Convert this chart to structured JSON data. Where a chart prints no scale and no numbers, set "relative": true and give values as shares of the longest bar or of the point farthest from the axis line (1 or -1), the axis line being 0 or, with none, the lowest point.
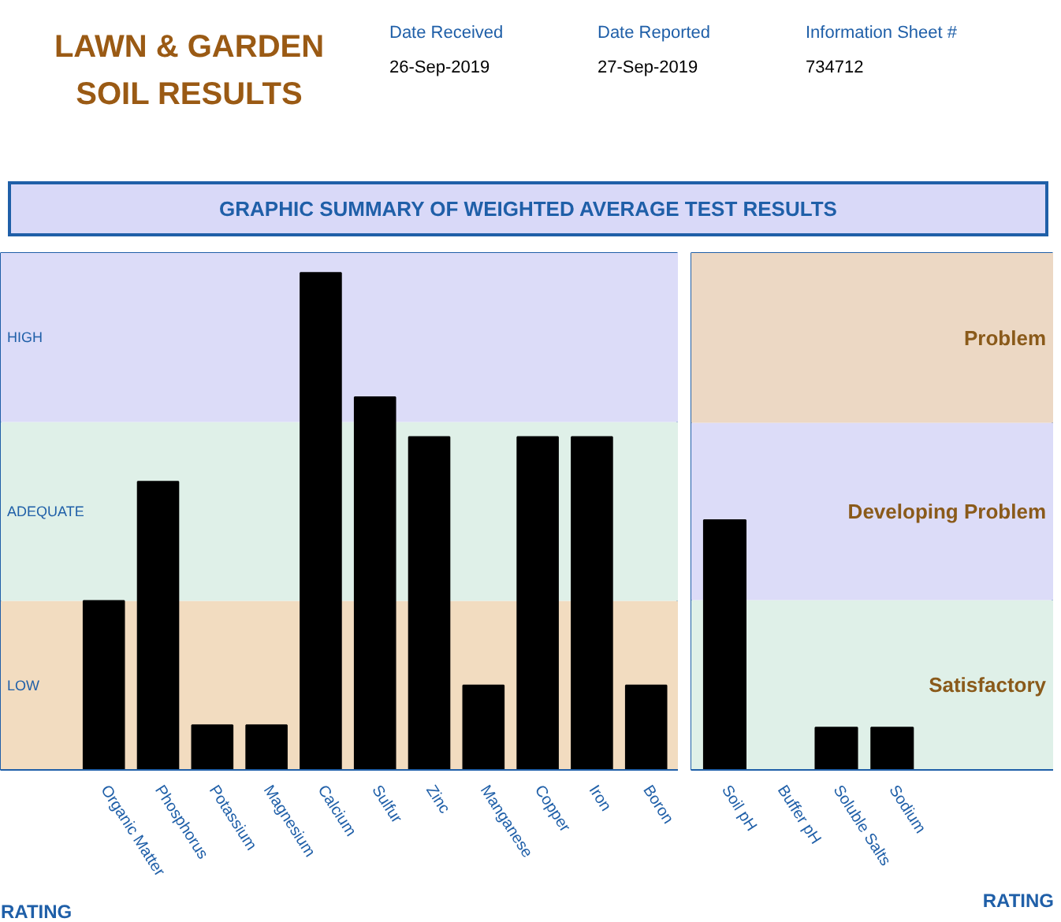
{
  "chart_data": [
    {
      "type": "bar",
      "title": "LAWN & GARDEN SOIL RESULTS",
      "subtitle": "GRAPHIC SUMMARY OF WEIGHTED AVERAGE TEST RESULTS",
      "annotations": [
        "Date Received",
        "26-Sep-2019",
        "Date Reported",
        "27-Sep-2019",
        "Information Sheet #",
        "734712"
      ],
      "xlabel": "RATING",
      "relative": true,
      "categories": [
        "Organic Matter",
        "Phosphorus",
        "Potassium",
        "Magnesium",
        "Calcium",
        "Sulfur",
        "Zinc",
        "Manganese",
        "Copper",
        "Iron",
        "Boron"
      ],
      "values": [
        0.34,
        0.58,
        0.09,
        0.09,
        1,
        0.75,
        0.67,
        0.17,
        0.67,
        0.67,
        0.17
      ],
      "color": "#000000",
      "bands": [
        {
          "axis": "y",
          "from": 0,
          "to": 0.34,
          "label": "LOW",
          "color": "#f2dcc0"
        },
        {
          "axis": "y",
          "from": 0.34,
          "to": 0.7,
          "label": "ADEQUATE",
          "color": "#dff0e8"
        },
        {
          "axis": "y",
          "from": 0.7,
          "to": 1.04,
          "label": "HIGH",
          "color": "#dcdcf8"
        }
      ]
    },
    {
      "type": "bar",
      "xlabel": "RATING",
      "relative": true,
      "categories": [
        "Soil pH",
        "Buffer pH",
        "Soluble Salts",
        "Sodium"
      ],
      "values": [
        1,
        null,
        0.17,
        0.17
      ],
      "color": "#000000",
      "bands": [
        {
          "axis": "y",
          "from": 0,
          "to": 0.68,
          "label": "Satisfactory",
          "color": "#dff0e8"
        },
        {
          "axis": "y",
          "from": 0.68,
          "to": 1.39,
          "label": "Developing Problem",
          "color": "#dcdcf8"
        },
        {
          "axis": "y",
          "from": 1.39,
          "to": 2.07,
          "label": "Problem",
          "color": "#ecd8c4"
        }
      ]
    }
  ]
}
